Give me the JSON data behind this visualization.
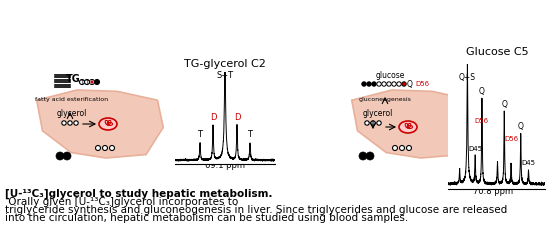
{
  "title_text": "TG-glycerol C2",
  "title_text2": "Glucose C5",
  "ppm1": "69.1 ppm",
  "ppm2": "70.8 ppm",
  "label_ST": "S+T",
  "label_T1": "T",
  "label_T2": "T",
  "label_D1": "D",
  "label_D2": "D",
  "label_Q1": "Q+S",
  "label_Q2": "Q",
  "label_Q3": "Q",
  "label_Q4": "Q",
  "label_D45a": "D45",
  "label_D45b": "D45",
  "label_D56a": "D56",
  "label_D56b": "D56",
  "caption_bold": "[U-¹³C₃]glycerol to study hepatic metabolism.",
  "caption_line1": " Orally given [U-¹³C₃]glycerol incorporates to",
  "caption_line2": "triglyceride synthesis and gluconeogenesis in liver. Since triglycerides and glucose are released",
  "caption_line3": "into the circulation, hepatic metabolism can be studied using blood samples.",
  "liver_color": "#f2c9b8",
  "liver_edge": "#e8b09a",
  "bg_color": "#ffffff",
  "red_color": "#cc0000",
  "font_size_caption": 7.5,
  "font_size_label": 7,
  "font_size_title": 8
}
